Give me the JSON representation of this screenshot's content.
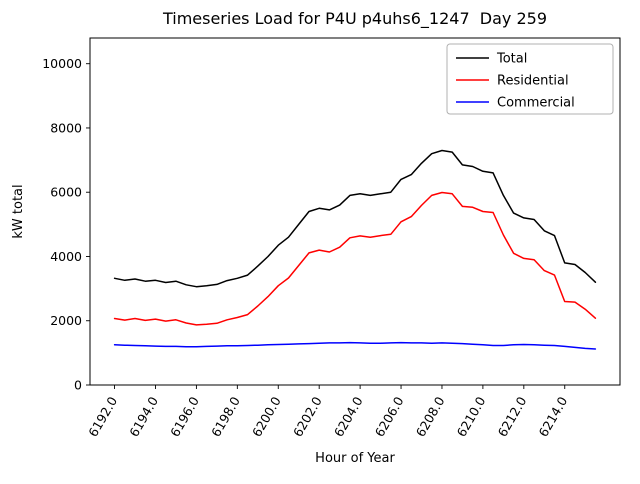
{
  "figure": {
    "background_color": "#ffffff"
  },
  "chart_data": {
    "type": "line",
    "title": "Timeseries Load for P4U p4uhs6_1247  Day 259",
    "xlabel": "Hour of Year",
    "ylabel": "kW total",
    "xlim": [
      6190.8,
      6216.7
    ],
    "ylim": [
      0,
      10800
    ],
    "xticks": [
      6192,
      6194,
      6196,
      6198,
      6200,
      6202,
      6204,
      6206,
      6208,
      6210,
      6212,
      6214
    ],
    "xtick_labels": [
      "6192.0",
      "6194.0",
      "6196.0",
      "6198.0",
      "6200.0",
      "6202.0",
      "6204.0",
      "6206.0",
      "6208.0",
      "6210.0",
      "6212.0",
      "6214.0"
    ],
    "yticks": [
      0,
      2000,
      4000,
      6000,
      8000,
      10000
    ],
    "ytick_labels": [
      "0",
      "2000",
      "4000",
      "6000",
      "8000",
      "10000"
    ],
    "grid": false,
    "legend_position": "upper right",
    "x_start": 6192,
    "x_step": 0.5,
    "series": [
      {
        "name": "Total",
        "color": "#000000",
        "values": [
          3320,
          3260,
          3300,
          3230,
          3260,
          3190,
          3230,
          3120,
          3060,
          3090,
          3130,
          3250,
          3320,
          3420,
          3700,
          4000,
          4350,
          4600,
          5000,
          5400,
          5500,
          5450,
          5600,
          5900,
          5950,
          5900,
          5950,
          6000,
          6400,
          6550,
          6900,
          7200,
          7300,
          7250,
          6850,
          6800,
          6650,
          6600,
          5900,
          5350,
          5200,
          5150,
          4800,
          4650,
          3800,
          3750,
          3500,
          3200
        ]
      },
      {
        "name": "Residential",
        "color": "#ff0000",
        "values": [
          2070,
          2020,
          2070,
          2010,
          2050,
          1990,
          2030,
          1930,
          1870,
          1890,
          1920,
          2030,
          2100,
          2190,
          2460,
          2750,
          3090,
          3330,
          3720,
          4110,
          4200,
          4140,
          4290,
          4580,
          4640,
          4600,
          4650,
          4690,
          5080,
          5240,
          5590,
          5900,
          5990,
          5950,
          5560,
          5530,
          5400,
          5370,
          4670,
          4100,
          3940,
          3900,
          3560,
          3420,
          2600,
          2580,
          2360,
          2080
        ]
      },
      {
        "name": "Commercial",
        "color": "#0000ff",
        "values": [
          1250,
          1240,
          1230,
          1220,
          1210,
          1200,
          1200,
          1190,
          1190,
          1200,
          1210,
          1220,
          1220,
          1230,
          1240,
          1250,
          1260,
          1270,
          1280,
          1290,
          1300,
          1310,
          1310,
          1320,
          1310,
          1300,
          1300,
          1310,
          1320,
          1310,
          1310,
          1300,
          1310,
          1300,
          1290,
          1270,
          1250,
          1230,
          1230,
          1250,
          1260,
          1250,
          1240,
          1230,
          1200,
          1170,
          1140,
          1120
        ]
      }
    ]
  }
}
